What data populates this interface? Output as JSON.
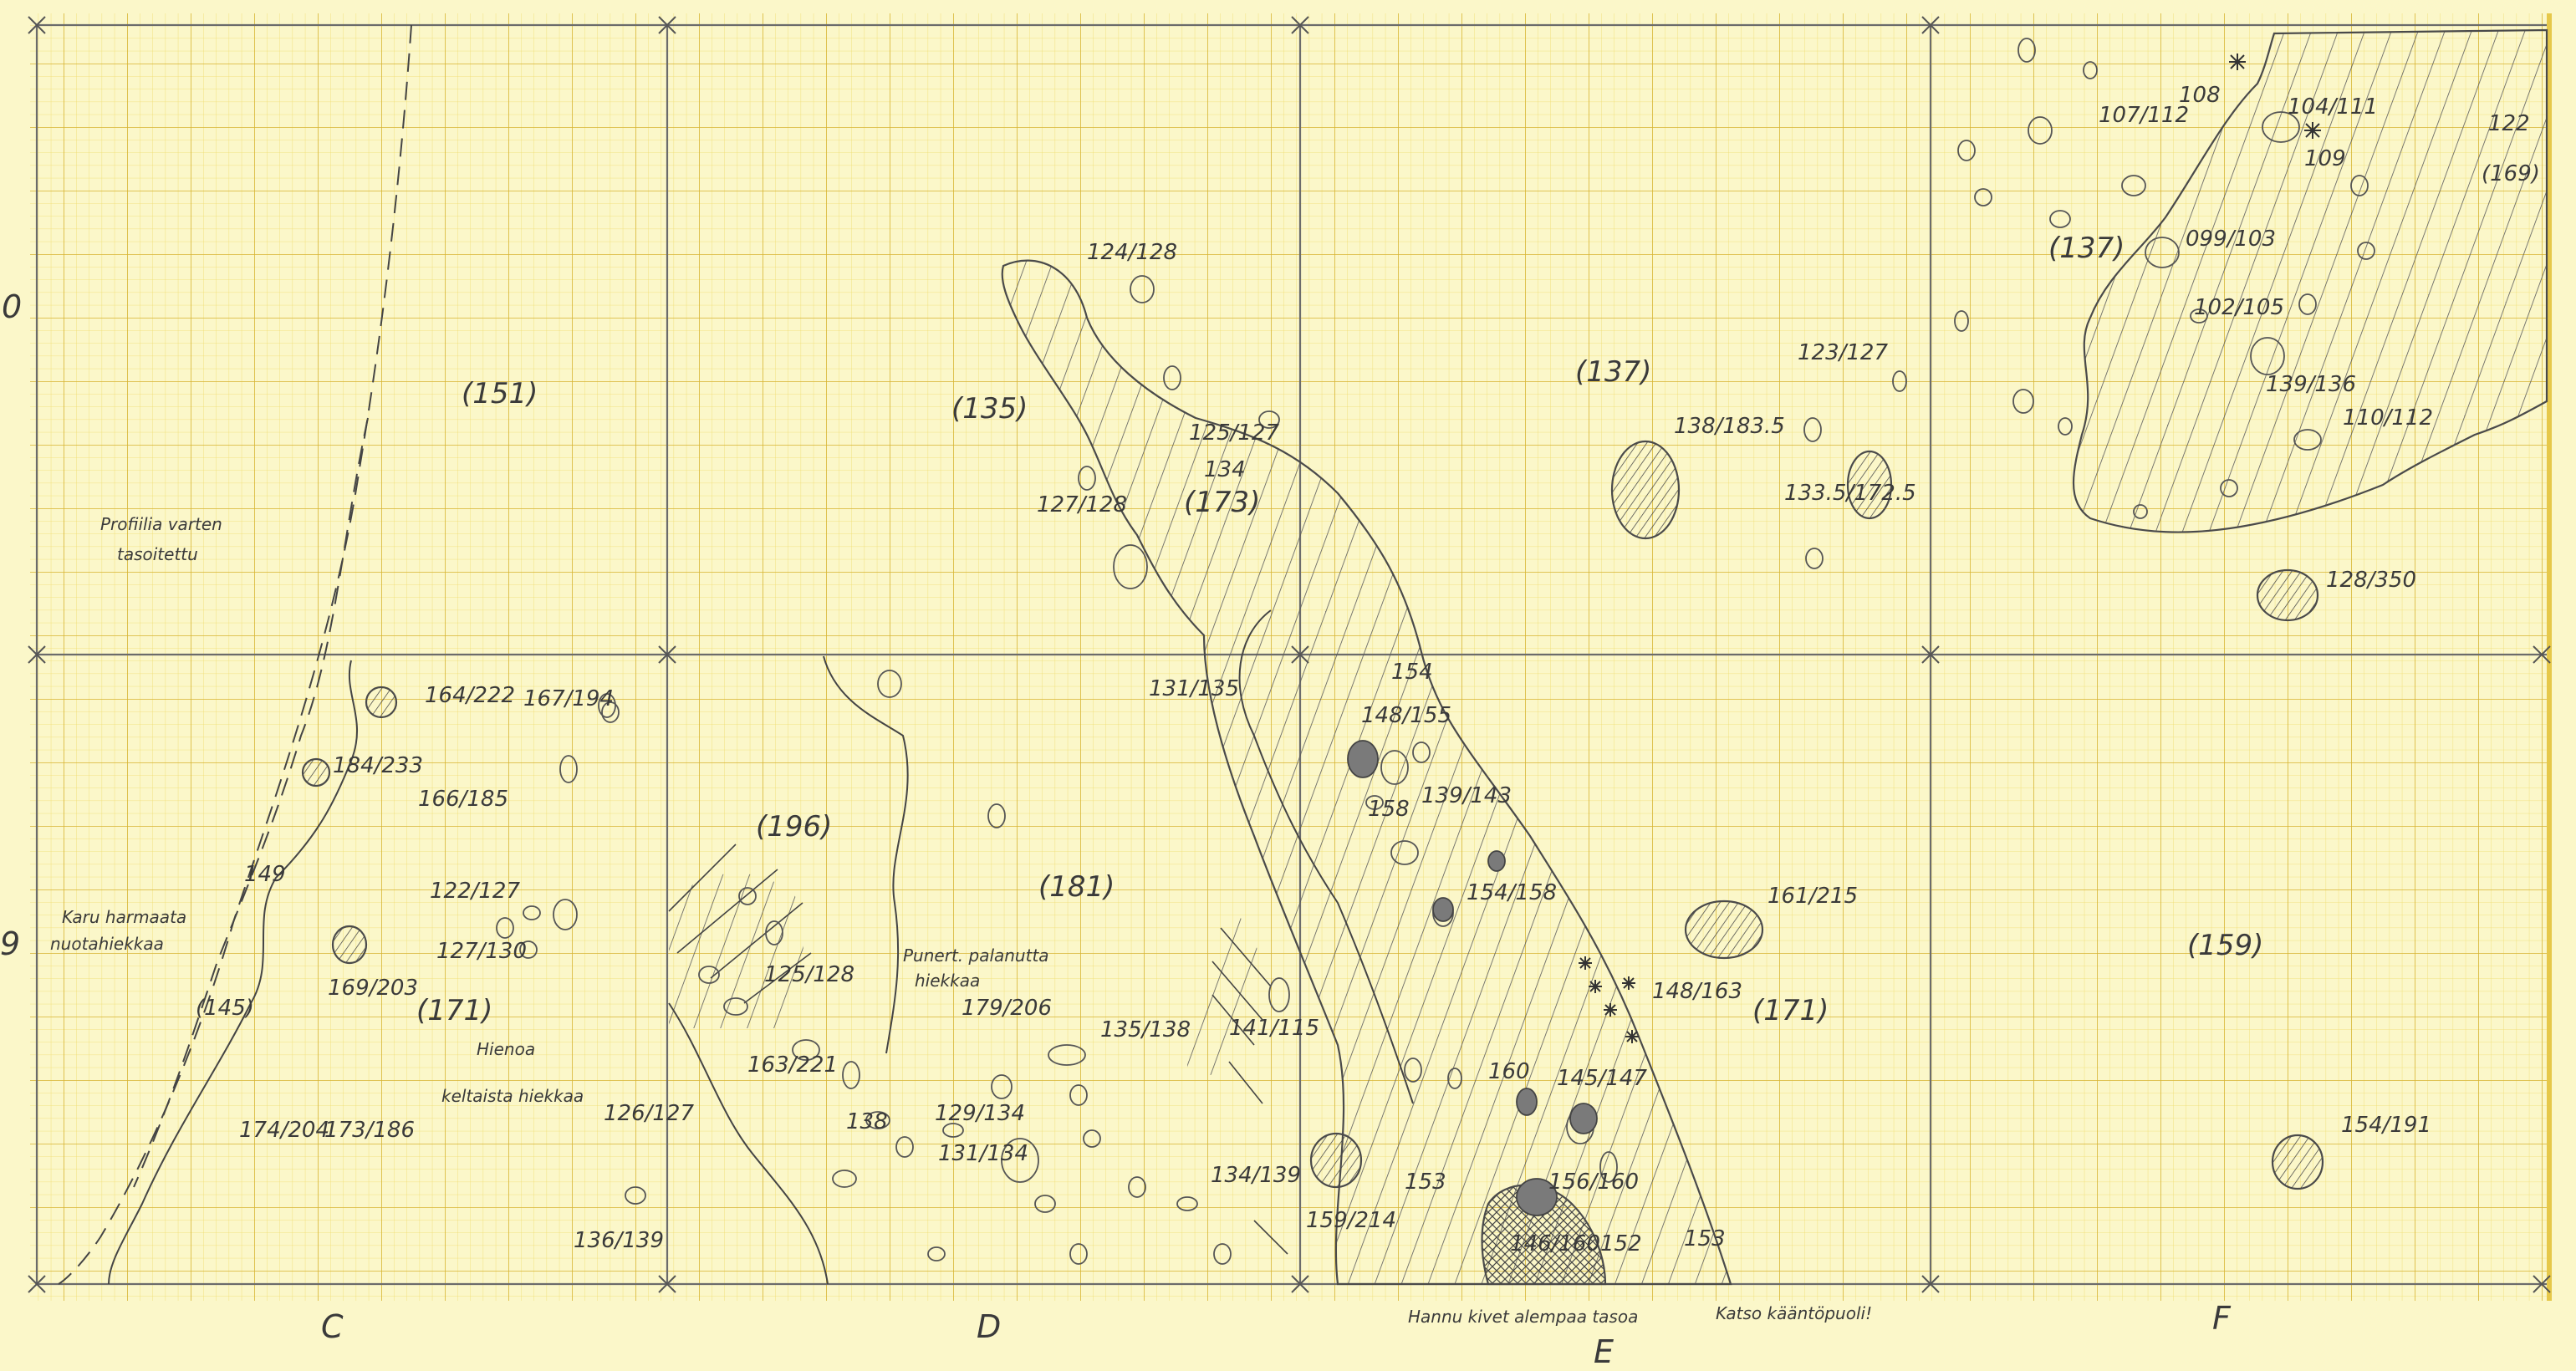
{
  "column_labels": [
    "C",
    "D",
    "E",
    "F"
  ],
  "row_labels": [
    "0",
    "9"
  ],
  "notes": {
    "profile": [
      "Profiilia varten",
      "tasoitettu"
    ],
    "gravel": [
      "Karu harmaata",
      "nuotahiekkaa"
    ],
    "fine_sand": [
      "Hienoa",
      "keltaista hiekkaa"
    ],
    "burnt_sand": [
      "Punert. palanutta",
      "hiekkaa"
    ],
    "stones": "Hannu kivet alempaa tasoa",
    "see_reverse": "Katso kääntöpuoli!"
  },
  "zone_labels": [
    "(151)",
    "(135)",
    "(173)",
    "(137)",
    "(137)",
    "(169)",
    "(196)",
    "(181)",
    "(171)",
    "(171)",
    "(159)",
    "(145)",
    "149",
    "134",
    "154",
    "153",
    "153",
    "122"
  ],
  "spot_heights": [
    "124/128",
    "125/127",
    "127/128",
    "131/135",
    "107/112",
    "104/111",
    "099/103",
    "102/105",
    "139/136",
    "110/112",
    "123/127",
    "138/183.5",
    "133.5/172.5",
    "128/350",
    "164/222",
    "167/194",
    "184/233",
    "166/185",
    "122/127",
    "127/130",
    "169/203",
    "174/204",
    "173/186",
    "126/127",
    "163/221",
    "136/139",
    "125/128",
    "138",
    "129/134",
    "131/134",
    "179/206",
    "135/138",
    "141/115",
    "134/139",
    "148/155",
    "158",
    "139/143",
    "154/158",
    "161/215",
    "148/163",
    "160",
    "145/147",
    "156/160",
    "146/160",
    "152",
    "159/214",
    "154/191"
  ],
  "point_labels": [
    "108",
    "109"
  ],
  "colors": {
    "paper": "#fbf7c9",
    "grid_fine": "#f0dc6a",
    "grid_major": "#d7b431",
    "grid_main": "#6b6b6b",
    "pencil": "#3a3a3a"
  }
}
